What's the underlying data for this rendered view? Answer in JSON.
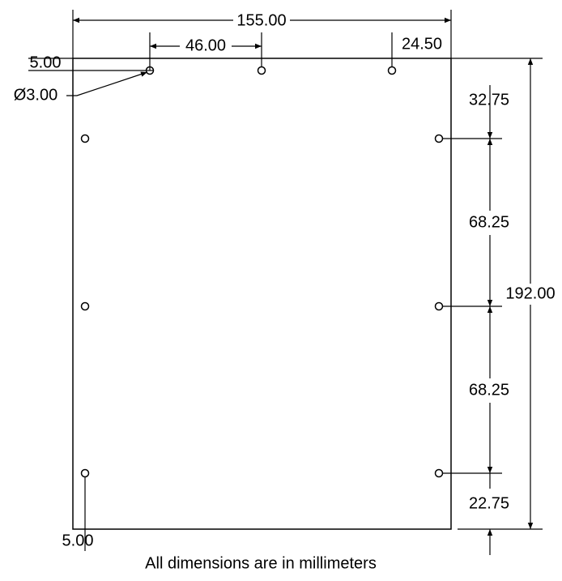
{
  "dimensions": {
    "overall_width": "155.00",
    "hole_spacing_top": "46.00",
    "right_offset_top": "24.50",
    "top_offset": "5.00",
    "hole_diameter": "Ø3.00",
    "overall_height": "192.00",
    "right_spacing_1": "32.75",
    "right_spacing_2": "68.25",
    "right_spacing_3": "68.25",
    "right_spacing_4": "22.75",
    "left_offset_bottom": "5.00"
  },
  "footnote": "All dimensions are in millimeters"
}
